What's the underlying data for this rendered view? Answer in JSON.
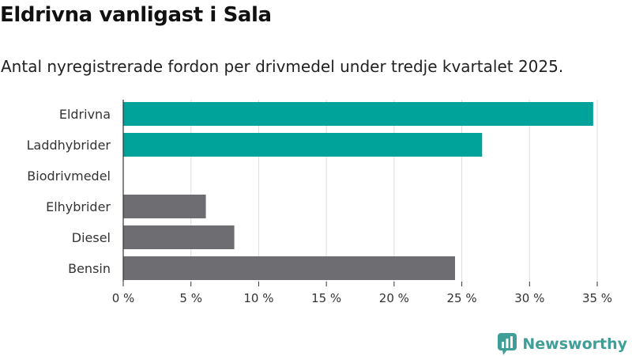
{
  "title": "Eldrivna vanligast i Sala",
  "subtitle": "Antal nyregistrerade fordon per drivmedel under tredje kvartalet 2025.",
  "brand": {
    "name": "Newsworthy",
    "icon": "newsworthy-logo-icon",
    "color": "#3f9e97"
  },
  "colors": {
    "highlight": "#00a39a",
    "default": "#6e6d72",
    "grid": "#dddddd",
    "axis": "#333333"
  },
  "chart_data": {
    "type": "bar",
    "orientation": "horizontal",
    "categories": [
      "Eldrivna",
      "Laddhybrider",
      "Biodrivmedel",
      "Elhybrider",
      "Diesel",
      "Bensin"
    ],
    "values": [
      34.7,
      26.5,
      0,
      6.1,
      8.2,
      24.5
    ],
    "bar_colors": [
      "#00a39a",
      "#00a39a",
      "#00a39a",
      "#6e6d72",
      "#6e6d72",
      "#6e6d72"
    ],
    "xticks": [
      0,
      5,
      10,
      15,
      20,
      25,
      30,
      35
    ],
    "xtick_labels": [
      "0 %",
      "5 %",
      "10 %",
      "15 %",
      "20 %",
      "25 %",
      "30 %",
      "35 %"
    ],
    "xlim": [
      0,
      35
    ],
    "grid": "vertical",
    "legend": "none"
  }
}
